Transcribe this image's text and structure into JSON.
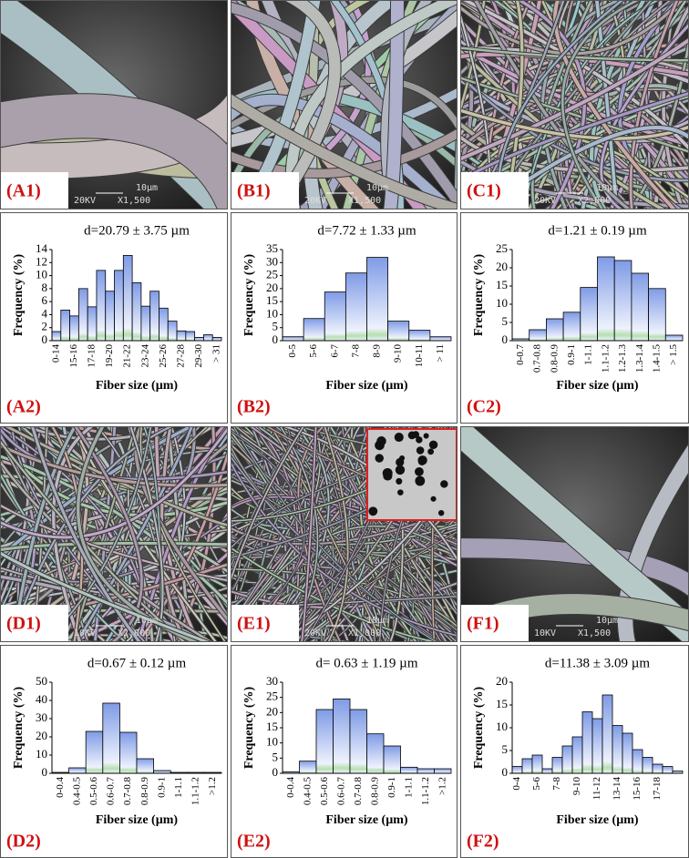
{
  "images": [
    {
      "label": "(A1)",
      "voltage": "20KV",
      "magnification": "X1,500",
      "scale": "10µm"
    },
    {
      "label": "(B1)",
      "voltage": "20KV",
      "magnification": "X1,500",
      "scale": "10µm"
    },
    {
      "label": "(C1)",
      "voltage": "20KV",
      "magnification": "X2,000",
      "scale": "10µm"
    },
    {
      "label": "(D1)",
      "voltage": "10KV",
      "magnification": "X2,000",
      "scale": "10µm"
    },
    {
      "label": "(E1)",
      "voltage": "20KV",
      "magnification": "X1,000",
      "scale": "10µm"
    },
    {
      "label": "(F1)",
      "voltage": "10KV",
      "magnification": "X1,500",
      "scale": "10µm"
    }
  ],
  "chart_data": [
    {
      "type": "bar",
      "title": "d=20.79 ± 3.75 µm",
      "ylabel": "Frequency (%)",
      "xlabel": "Fiber size (µm)",
      "panel_label": "(A2)",
      "color": "#7f9be6",
      "categories": [
        "0-14",
        null,
        "15-16",
        null,
        "17-18",
        null,
        "19-20",
        null,
        "21-22",
        null,
        "23-24",
        null,
        "25-26",
        null,
        "27-28",
        null,
        "29-30",
        null,
        "> 31"
      ],
      "values": [
        1.4,
        4.7,
        3.8,
        8.0,
        5.2,
        10.8,
        7.6,
        10.8,
        13.1,
        8.9,
        5.3,
        7.6,
        5.0,
        3.0,
        1.5,
        1.4,
        0.5,
        0.9,
        0.5
      ],
      "ylim": [
        0,
        14
      ],
      "yticks": [
        0,
        2,
        4,
        6,
        8,
        10,
        12,
        14
      ]
    },
    {
      "type": "bar",
      "title": "d=7.72 ± 1.33 µm",
      "ylabel": "Frequency (%)",
      "xlabel": "Fiber size (µm)",
      "panel_label": "(B2)",
      "color": "#7f9be6",
      "categories": [
        "0-5",
        "5-6",
        "6-7",
        "7-8",
        "8-9",
        "9-10",
        "10-11",
        "> 11"
      ],
      "values": [
        1.5,
        8.5,
        18.7,
        26,
        32,
        7.5,
        4,
        1.5
      ],
      "ylim": [
        0,
        35
      ],
      "yticks": [
        0,
        5,
        10,
        15,
        20,
        25,
        30,
        35
      ]
    },
    {
      "type": "bar",
      "title": "d=1.21 ± 0.19 µm",
      "ylabel": "Frequency (%)",
      "xlabel": "Fiber size (µm)",
      "panel_label": "(C2)",
      "color": "#7f9be6",
      "categories": [
        "0-0.7",
        "0.7-0.8",
        "0.8-0.9",
        "0.9-1",
        "1-1.1",
        "1.1-1.2",
        "1.2-1.3",
        "1.3-1.4",
        "1.4-1.5",
        "> 1.5"
      ],
      "values": [
        0.5,
        3,
        6,
        7.8,
        14.6,
        23,
        22,
        18.5,
        14.3,
        1.5
      ],
      "ylim": [
        0,
        25
      ],
      "yticks": [
        0,
        5,
        10,
        15,
        20,
        25
      ]
    },
    {
      "type": "bar",
      "title": "d=0.67 ± 0.12 µm",
      "ylabel": "Frequency (%)",
      "xlabel": "Fiber size (µm)",
      "panel_label": "(D2)",
      "color": "#7f9be6",
      "categories": [
        "0-0.4",
        "0.4-0.5",
        "0.5-0.6",
        "0.6-0.7",
        "0.7-0.8",
        "0.8-0.9",
        "0.9-1",
        "1-1.1",
        "1.1-1.2",
        ">1.2"
      ],
      "values": [
        0.5,
        3,
        23,
        38.5,
        22.5,
        8,
        1.5,
        0.5,
        0.5,
        0.5
      ],
      "ylim": [
        0,
        50
      ],
      "yticks": [
        0,
        10,
        20,
        30,
        40,
        50
      ]
    },
    {
      "type": "bar",
      "title": "d= 0.63 ± 1.19 µm",
      "ylabel": "Frequency (%)",
      "xlabel": "Fiber size (µm)",
      "panel_label": "(E2)",
      "color": "#7f9be6",
      "categories": [
        "0-0.4",
        "0.4-0.5",
        "0.5-0.6",
        "0.6-0.7",
        "0.7-0.8",
        "0.8-0.9",
        "0.9-1",
        "1-1.1",
        "1.1-1.2",
        ">1.2"
      ],
      "values": [
        0.5,
        4,
        21,
        24.5,
        21,
        13,
        9,
        2,
        1.5,
        1.5
      ],
      "ylim": [
        0,
        30
      ],
      "yticks": [
        0,
        5,
        10,
        15,
        20,
        25,
        30
      ]
    },
    {
      "type": "bar",
      "title": "d=11.38 ± 3.09 µm",
      "ylabel": "Frequency (%)",
      "xlabel": "Fiber size (µm)",
      "panel_label": "(F2)",
      "color": "#7f9be6",
      "categories": [
        "0-4",
        null,
        "5-6",
        null,
        "7-8",
        null,
        "9-10",
        null,
        "11-12",
        null,
        "13-14",
        null,
        "15-16",
        null,
        "17-18",
        null,
        null
      ],
      "values": [
        1.5,
        3.2,
        4,
        1,
        3.5,
        6,
        8,
        13.5,
        12,
        17.2,
        10.5,
        8.8,
        5.2,
        3.5,
        2,
        1.5,
        0.5
      ],
      "ylim": [
        0,
        20
      ],
      "yticks": [
        0,
        5,
        10,
        15,
        20
      ]
    }
  ]
}
